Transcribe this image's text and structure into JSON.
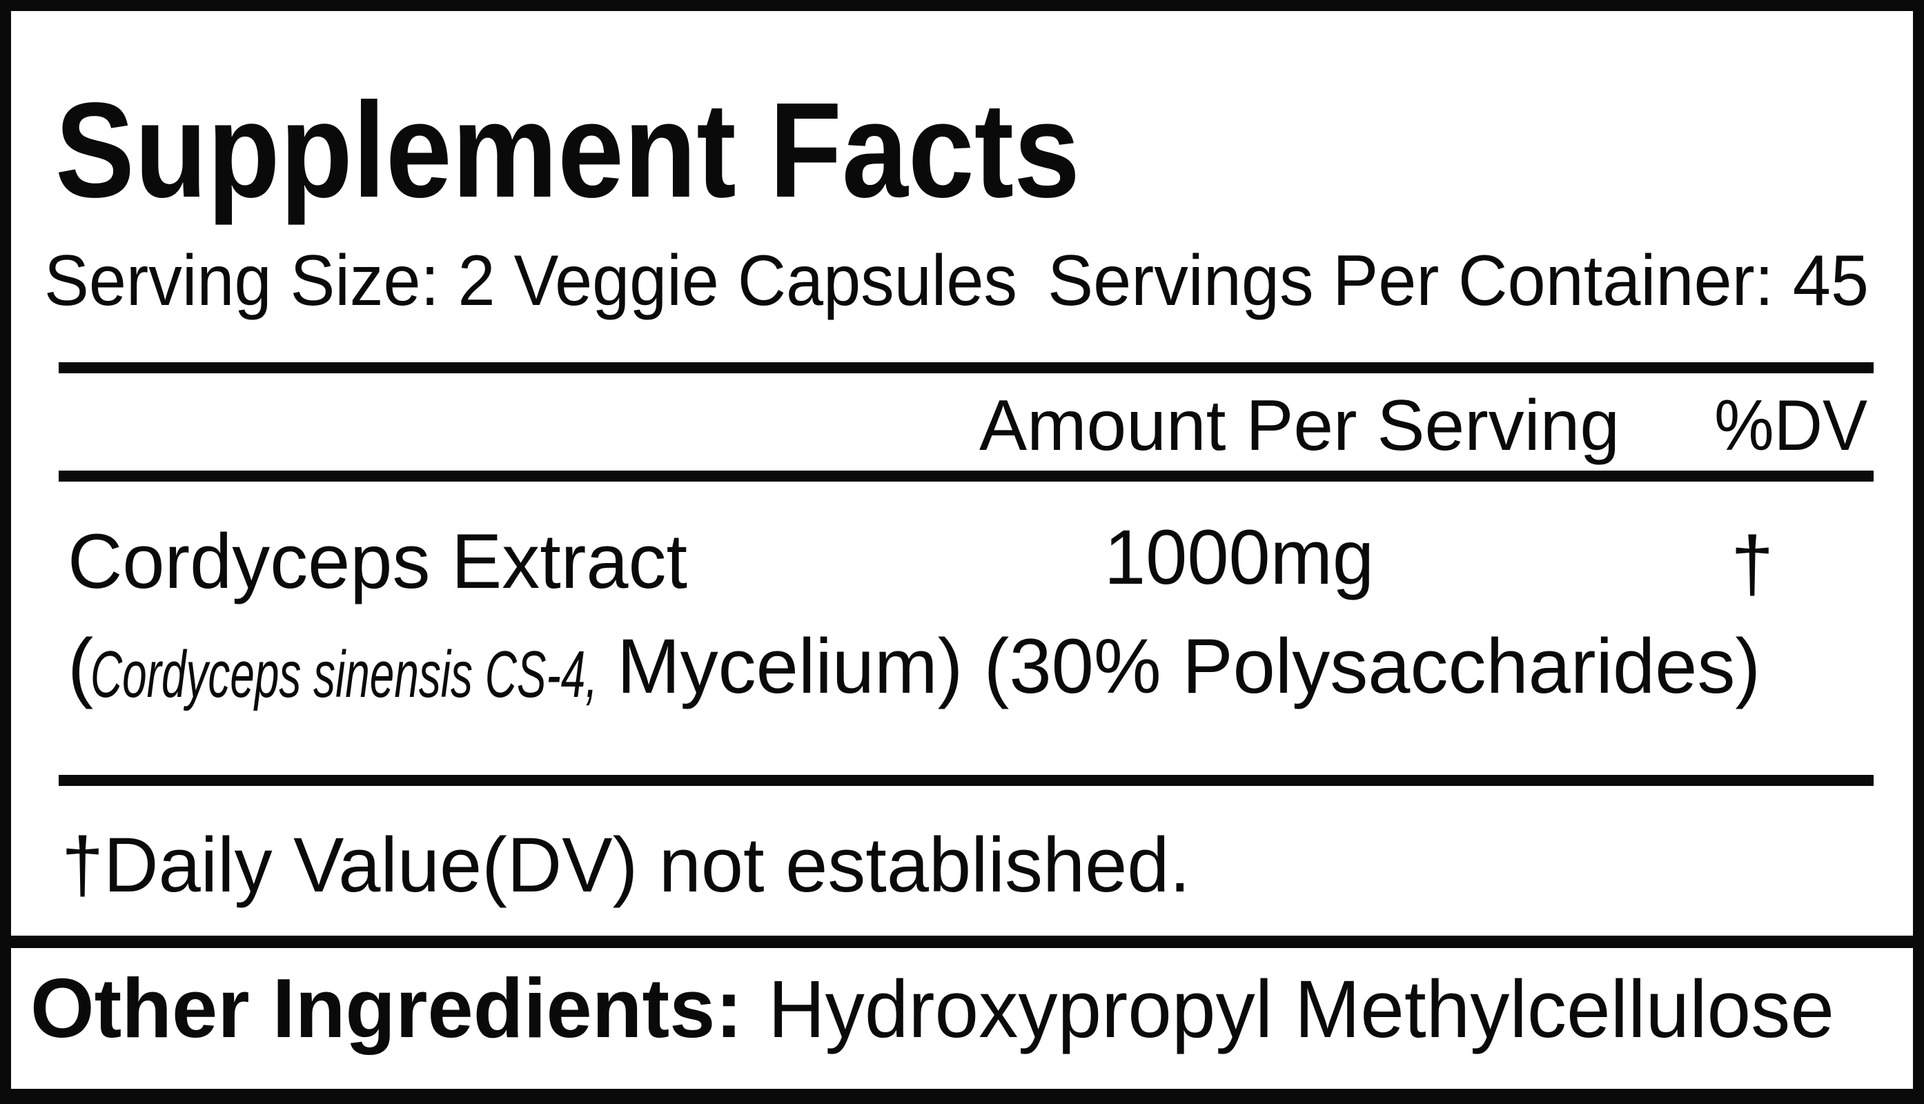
{
  "title": "Supplement Facts",
  "serving_size": "Serving Size: 2 Veggie Capsules",
  "servings_per_container": "Servings Per Container: 45",
  "header": {
    "amount": "Amount Per Serving",
    "dv": "%DV"
  },
  "ingredient": {
    "name": "Cordyceps Extract",
    "amount": "1000mg",
    "dv": "†",
    "open_paren": "(",
    "species": "Cordyceps sinensis CS-4,",
    "detail": "Mycelium) (30% Polysaccharides)"
  },
  "footnote": "†Daily Value(DV) not established.",
  "other_ingredients": {
    "label": "Other Ingredients:",
    "value": "Hydroxypropyl Methylcellulose"
  },
  "colors": {
    "ink": "#0a0a0a",
    "background": "#ffffff"
  }
}
